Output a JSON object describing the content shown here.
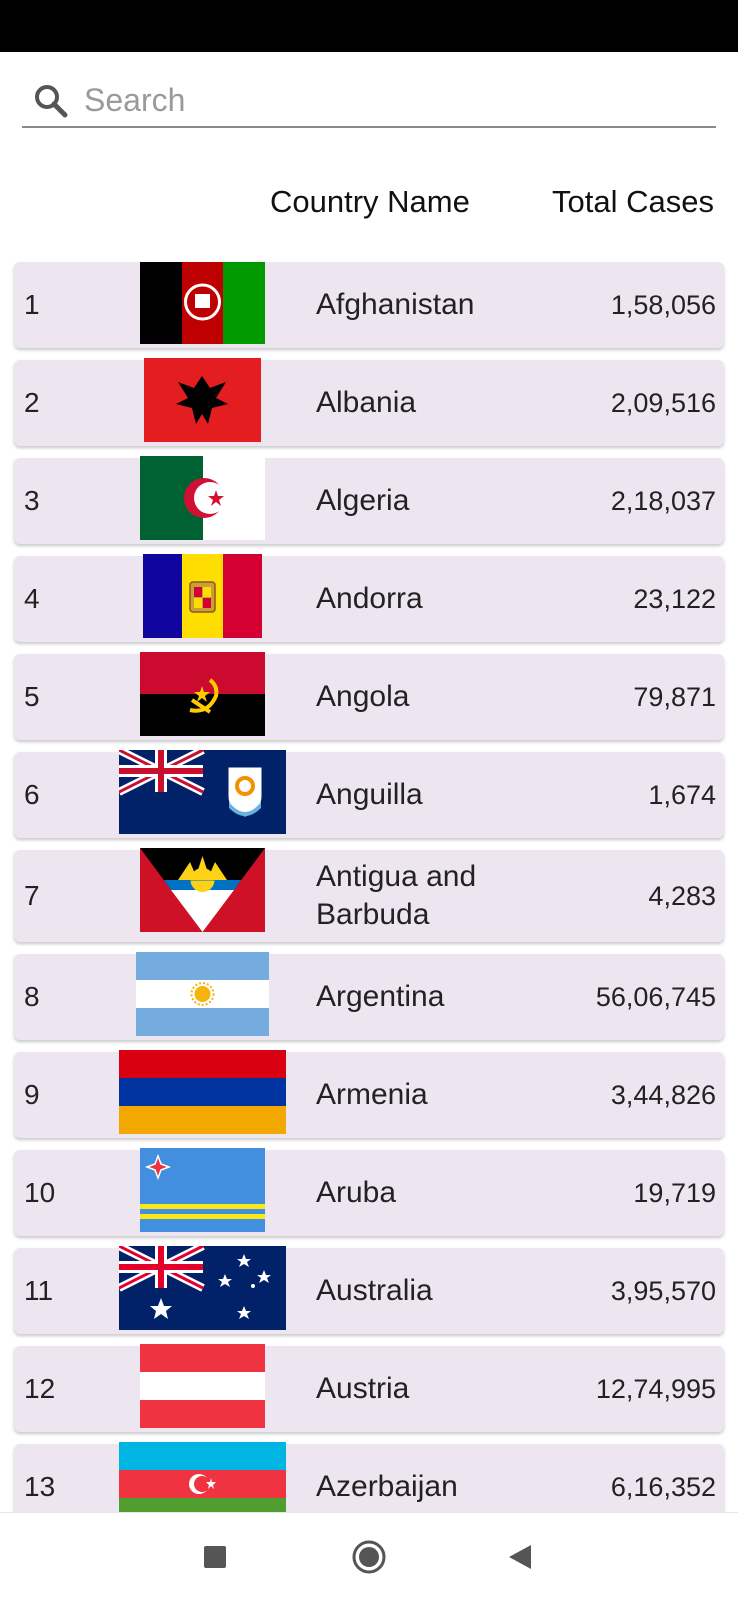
{
  "search": {
    "placeholder": "Search",
    "icon": "search-icon"
  },
  "table": {
    "header_name": "Country Name",
    "header_cases": "Total Cases",
    "rows": [
      {
        "rank": "1",
        "country": "Afghanistan",
        "cases": "1,58,056",
        "flag": "afghanistan-flag"
      },
      {
        "rank": "2",
        "country": "Albania",
        "cases": "2,09,516",
        "flag": "albania-flag"
      },
      {
        "rank": "3",
        "country": "Algeria",
        "cases": "2,18,037",
        "flag": "algeria-flag"
      },
      {
        "rank": "4",
        "country": "Andorra",
        "cases": "23,122",
        "flag": "andorra-flag"
      },
      {
        "rank": "5",
        "country": "Angola",
        "cases": "79,871",
        "flag": "angola-flag"
      },
      {
        "rank": "6",
        "country": "Anguilla",
        "cases": "1,674",
        "flag": "anguilla-flag"
      },
      {
        "rank": "7",
        "country": "Antigua and Barbuda",
        "cases": "4,283",
        "flag": "antigua-and-barbuda-flag"
      },
      {
        "rank": "8",
        "country": "Argentina",
        "cases": "56,06,745",
        "flag": "argentina-flag"
      },
      {
        "rank": "9",
        "country": "Armenia",
        "cases": "3,44,826",
        "flag": "armenia-flag"
      },
      {
        "rank": "10",
        "country": "Aruba",
        "cases": "19,719",
        "flag": "aruba-flag"
      },
      {
        "rank": "11",
        "country": "Australia",
        "cases": "3,95,570",
        "flag": "australia-flag"
      },
      {
        "rank": "12",
        "country": "Austria",
        "cases": "12,74,995",
        "flag": "austria-flag"
      },
      {
        "rank": "13",
        "country": "Azerbaijan",
        "cases": "6,16,352",
        "flag": "azerbaijan-flag"
      }
    ]
  },
  "nav": {
    "recents": "recents-square-icon",
    "home": "home-circle-icon",
    "back": "back-triangle-icon"
  },
  "colors": {
    "row_background": "#ede6f1",
    "status_bar": "#000000",
    "search_underline": "#8a8a8a"
  }
}
